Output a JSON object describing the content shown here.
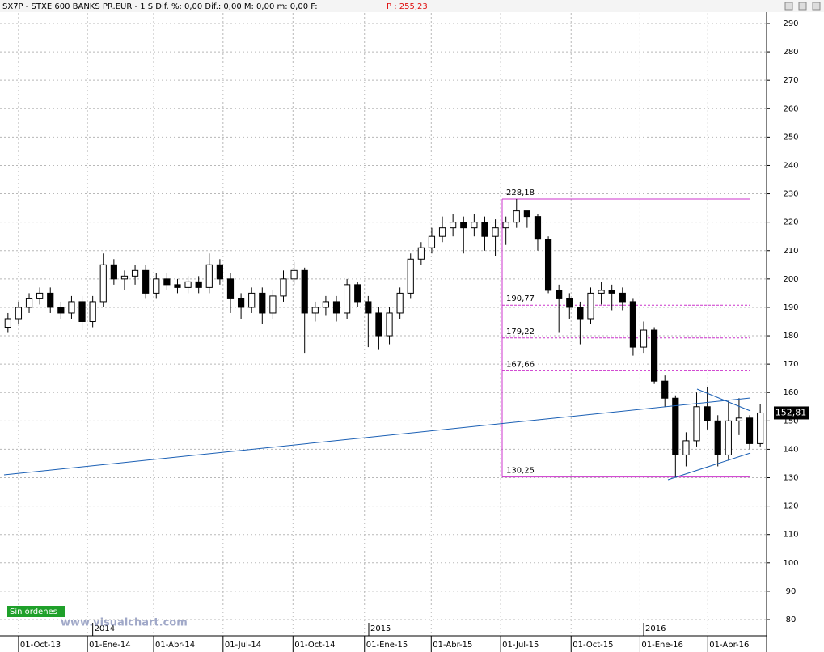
{
  "header": {
    "symbol_info": "SX7P - STXE 600 BANKS PR.EUR -  1 S Dif. %: 0,00 Dif.: 0,00 M: 0,00 m: 0,00 F:",
    "price_label": "P : 255,23"
  },
  "button": "Sin órdenes",
  "watermark": "www.visualchart.com",
  "chart_data": {
    "type": "candlestick",
    "x": [
      -2,
      0,
      2,
      4,
      6,
      8,
      10,
      12,
      14,
      16,
      18,
      20,
      22,
      24,
      26,
      28,
      30,
      32,
      34,
      36,
      38,
      40,
      42,
      44,
      46,
      48,
      50,
      52,
      54,
      56,
      58,
      60,
      62,
      64,
      66,
      68,
      70,
      72,
      74,
      76,
      78,
      80,
      82,
      84,
      86,
      88,
      90,
      92,
      94,
      96,
      98,
      100,
      102,
      104,
      106,
      108,
      110,
      112,
      114,
      116,
      118,
      120,
      122,
      124,
      126,
      128,
      130,
      132,
      134,
      136,
      138,
      140
    ],
    "open": [
      183,
      186,
      190,
      193,
      195,
      190,
      188,
      192,
      185,
      192,
      205,
      200,
      201,
      203,
      195,
      200,
      198,
      197,
      199,
      197,
      205,
      200,
      193,
      190,
      195,
      188,
      194,
      200,
      203,
      188,
      190,
      192,
      188,
      198,
      192,
      188,
      180,
      188,
      195,
      207,
      211,
      215,
      218,
      220,
      218,
      220,
      215,
      218,
      220,
      224,
      222,
      214,
      196,
      193,
      190,
      186,
      195,
      196,
      195,
      192,
      176,
      182,
      164,
      158,
      138,
      143,
      155,
      150,
      138,
      150,
      151,
      142
    ],
    "high": [
      188,
      192,
      195,
      197,
      197,
      192,
      194,
      194,
      194,
      209,
      207,
      203,
      205,
      205,
      202,
      202,
      200,
      201,
      201,
      209,
      207,
      202,
      195,
      197,
      197,
      196,
      203,
      206,
      204,
      192,
      194,
      194,
      200,
      199,
      194,
      190,
      190,
      197,
      209,
      213,
      218,
      222,
      223,
      222,
      223,
      222,
      221,
      222,
      228.18,
      224,
      223,
      215,
      198,
      195,
      192,
      197,
      199,
      198,
      197,
      193,
      185,
      183,
      166,
      159,
      146,
      160,
      162,
      152,
      157,
      158,
      152,
      156
    ],
    "low": [
      181,
      184,
      188,
      191,
      188,
      186,
      186,
      182,
      183,
      190,
      198,
      196,
      198,
      193,
      193,
      196,
      195,
      195,
      195,
      195,
      198,
      188,
      186,
      188,
      184,
      186,
      192,
      198,
      174,
      185,
      187,
      185,
      186,
      190,
      176,
      175,
      177,
      186,
      193,
      205,
      209,
      213,
      215,
      209,
      215,
      210,
      208,
      212,
      218,
      218,
      210,
      195,
      181,
      186,
      177,
      184,
      191,
      189,
      189,
      173,
      174,
      163,
      155,
      130.25,
      134,
      141,
      147,
      134,
      136,
      145,
      140,
      141
    ],
    "close": [
      186,
      190,
      193,
      195,
      190,
      188,
      192,
      185,
      192,
      205,
      200,
      201,
      203,
      195,
      200,
      198,
      197,
      199,
      197,
      205,
      200,
      193,
      190,
      195,
      188,
      194,
      200,
      203,
      188,
      190,
      192,
      188,
      198,
      192,
      188,
      180,
      188,
      195,
      207,
      211,
      215,
      218,
      220,
      218,
      220,
      215,
      218,
      220,
      224,
      222,
      214,
      196,
      193,
      190,
      186,
      195,
      196,
      195,
      192,
      176,
      182,
      164,
      158,
      138,
      143,
      155,
      150,
      138,
      150,
      151,
      142,
      152.81
    ],
    "xlim": [
      -3.5,
      141.2
    ],
    "xticks": [
      {
        "value": 0,
        "label": "01-Oct-13"
      },
      {
        "value": 13,
        "label": "01-Ene-14"
      },
      {
        "value": 25.5,
        "label": "01-Abr-14"
      },
      {
        "value": 38.6,
        "label": "01-Jul-14"
      },
      {
        "value": 51.8,
        "label": "01-Oct-14"
      },
      {
        "value": 65.3,
        "label": "01-Ene-15"
      },
      {
        "value": 77.9,
        "label": "01-Abr-15"
      },
      {
        "value": 91,
        "label": "01-Jul-15"
      },
      {
        "value": 104.3,
        "label": "01-Oct-15"
      },
      {
        "value": 117.3,
        "label": "01-Ene-16"
      },
      {
        "value": 130.1,
        "label": "01-Abr-16"
      }
    ],
    "year_labels": [
      {
        "value": 14,
        "label": "2014"
      },
      {
        "value": 66.1,
        "label": "2015"
      },
      {
        "value": 118,
        "label": "2016"
      }
    ],
    "ylim": [
      74.3,
      293.7
    ],
    "yticks": [
      80,
      90,
      100,
      110,
      120,
      130,
      140,
      150,
      160,
      170,
      180,
      190,
      200,
      210,
      220,
      230,
      240,
      250,
      260,
      270,
      280,
      290
    ],
    "levels": [
      {
        "value": 228.18,
        "label": "228,18"
      },
      {
        "value": 190.77,
        "label": "190,77"
      },
      {
        "value": 179.22,
        "label": "179,22"
      },
      {
        "value": 167.66,
        "label": "167,66"
      },
      {
        "value": 130.25,
        "label": "130,25"
      }
    ],
    "last_price": {
      "value": 152.81,
      "label": "152,81"
    },
    "up_color": "#ffffff",
    "down_color": "#000000",
    "level_color": "#cc33cc",
    "grid": true
  }
}
